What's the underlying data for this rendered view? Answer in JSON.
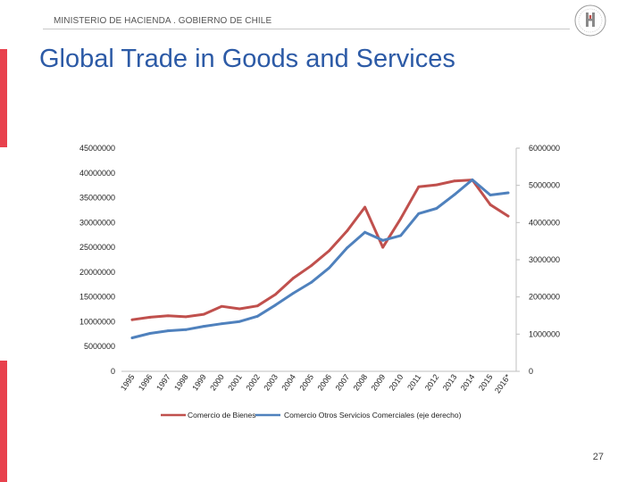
{
  "header": {
    "org_text": "MINISTERIO DE HACIENDA . GOBIERNO DE CHILE",
    "logo_icon": "chile-government-seal-icon"
  },
  "title": "Global Trade in Goods and Services",
  "page_number": "27",
  "colors": {
    "title": "#2c5aa6",
    "accent_bar": "#e8414d",
    "series_goods": "#c0504d",
    "series_services": "#4f81bd"
  },
  "chart_data": {
    "type": "line",
    "title": "",
    "categories": [
      "1995",
      "1996",
      "1997",
      "1998",
      "1999",
      "2000",
      "2001",
      "2002",
      "2003",
      "2004",
      "2005",
      "2006",
      "2007",
      "2008",
      "2009",
      "2010",
      "2011",
      "2012",
      "2013",
      "2014",
      "2015",
      "2016*"
    ],
    "y_left": {
      "min": 0,
      "max": 45000000,
      "step": 5000000,
      "tick_labels": [
        "0",
        "5000000",
        "10000000",
        "15000000",
        "20000000",
        "25000000",
        "30000000",
        "35000000",
        "40000000",
        "45000000"
      ]
    },
    "y_right": {
      "min": 0,
      "max": 6000000,
      "step": 1000000,
      "tick_labels": [
        "0",
        "1000000",
        "2000000",
        "3000000",
        "4000000",
        "5000000",
        "6000000"
      ]
    },
    "series": [
      {
        "name": "Comercio de Bienes",
        "axis": "left",
        "color": "#c0504d",
        "values": [
          10400000,
          10900000,
          11200000,
          11000000,
          11500000,
          13100000,
          12600000,
          13200000,
          15500000,
          18800000,
          21300000,
          24300000,
          28300000,
          33100000,
          25000000,
          30800000,
          37200000,
          37600000,
          38400000,
          38600000,
          33600000,
          31300000
        ]
      },
      {
        "name": "Comercio Otros Servicios Comerciales (eje derecho)",
        "axis": "right",
        "color": "#4f81bd",
        "values": [
          900000,
          1020000,
          1090000,
          1120000,
          1210000,
          1280000,
          1340000,
          1480000,
          1780000,
          2100000,
          2390000,
          2780000,
          3320000,
          3740000,
          3520000,
          3650000,
          4240000,
          4380000,
          4750000,
          5150000,
          4740000,
          4800000
        ]
      }
    ],
    "legend": {
      "position": "bottom",
      "entries": [
        "Comercio de Bienes",
        "Comercio Otros Servicios Comerciales (eje derecho)"
      ]
    }
  }
}
